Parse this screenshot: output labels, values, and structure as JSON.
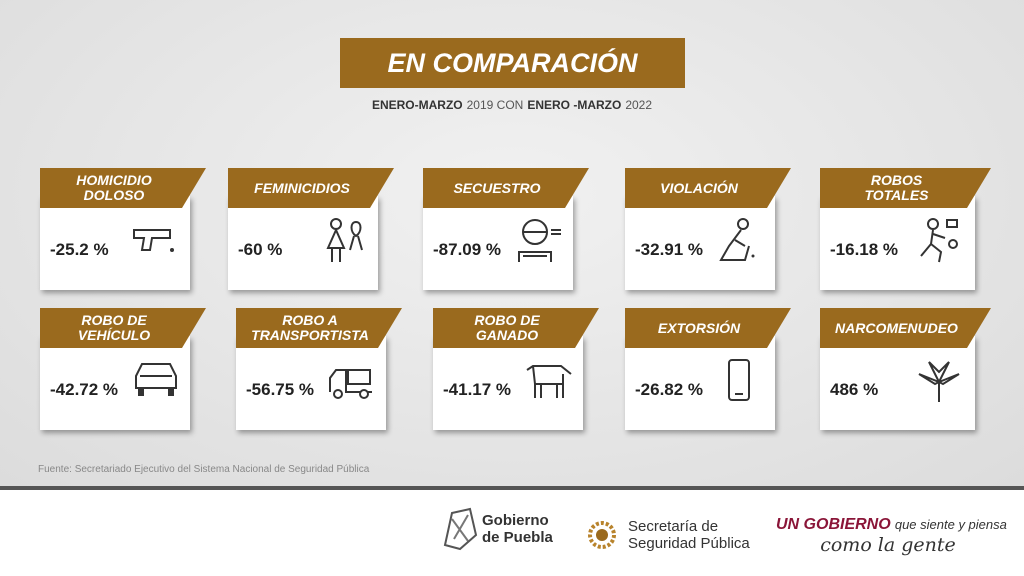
{
  "header": {
    "title": "EN COMPARACIÓN",
    "subtitle": [
      "ENERO-MARZO",
      "2019 CON",
      "ENERO -MARZO",
      "2022"
    ]
  },
  "cards": [
    {
      "label": [
        "HOMICIDIO",
        "DOLOSO"
      ],
      "value": "-25.2 %"
    },
    {
      "label": [
        "FEMINICIDIOS"
      ],
      "value": "-60 %"
    },
    {
      "label": [
        "SECUESTRO"
      ],
      "value": "-87.09 %"
    },
    {
      "label": [
        "VIOLACIÓN"
      ],
      "value": "-32.91 %"
    },
    {
      "label": [
        "ROBOS",
        "TOTALES"
      ],
      "value": "-16.18 %"
    },
    {
      "label": [
        "ROBO DE",
        "VEHÍCULO"
      ],
      "value": "-42.72 %"
    },
    {
      "label": [
        "ROBO A",
        "TRANSPORTISTA"
      ],
      "value": "-56.75 %"
    },
    {
      "label": [
        "ROBO DE",
        "GANADO"
      ],
      "value": "-41.17 %"
    },
    {
      "label": [
        "EXTORSIÓN"
      ],
      "value": "-26.82 %"
    },
    {
      "label": [
        "NARCOMENUDEO"
      ],
      "value": "486 %"
    }
  ],
  "source": "Fuente: Secretariado Ejecutivo del  Sistema Nacional de Seguridad Pública",
  "footer": {
    "gobierno": [
      "Gobierno",
      "de Puebla"
    ],
    "secretaria": [
      "Secretaría de",
      "Seguridad Pública"
    ],
    "slogan": {
      "strong": "UN GOBIERNO",
      "rest": "que siente y piensa",
      "line2": "como la gente"
    }
  }
}
